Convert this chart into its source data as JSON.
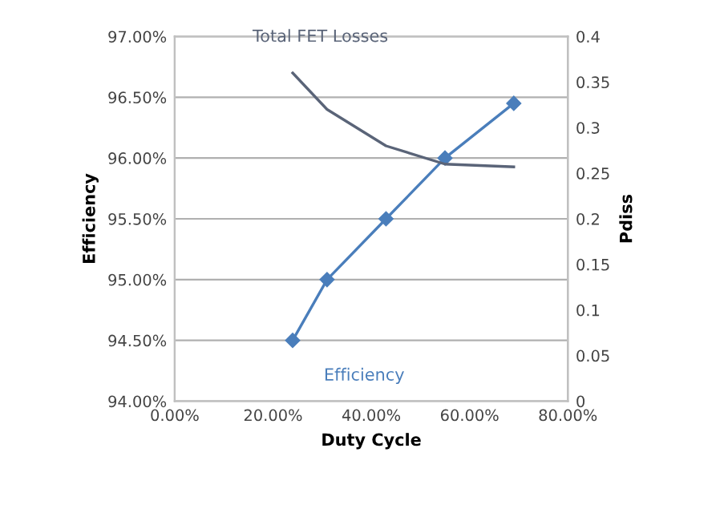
{
  "chart_data": {
    "type": "line",
    "xlabel": "Duty Cycle",
    "ylabel": "Efficiency",
    "y2label": "Pdiss",
    "xlim": [
      0,
      80
    ],
    "xticks": [
      {
        "value": 0,
        "label": "0.00%"
      },
      {
        "value": 20,
        "label": "20.00%"
      },
      {
        "value": 40,
        "label": "40.00%"
      },
      {
        "value": 60,
        "label": "60.00%"
      },
      {
        "value": 80,
        "label": "80.00%"
      }
    ],
    "ylim": [
      94,
      97
    ],
    "yticks": [
      {
        "value": 94,
        "label": "94.00%"
      },
      {
        "value": 94.5,
        "label": "94.50%"
      },
      {
        "value": 95,
        "label": "95.00%"
      },
      {
        "value": 95.5,
        "label": "95.50%"
      },
      {
        "value": 96,
        "label": "96.00%"
      },
      {
        "value": 96.5,
        "label": "96.50%"
      },
      {
        "value": 97,
        "label": "97.00%"
      }
    ],
    "y2lim": [
      0,
      0.4
    ],
    "y2ticks": [
      0,
      0.05,
      0.1,
      0.15,
      0.2,
      0.25,
      0.3,
      0.35,
      0.4
    ],
    "grid": "y",
    "legend": false,
    "series": [
      {
        "name": "Efficiency",
        "color": "#4a7ebb",
        "marker": "diamond",
        "x": [
          24,
          31,
          43,
          55,
          69
        ],
        "values": [
          94.5,
          95.0,
          95.5,
          96.0,
          96.45
        ]
      },
      {
        "name": "Total FET Losses",
        "color": "#5a6478",
        "marker": "none",
        "axis": "y2",
        "x": [
          24,
          31,
          43,
          55,
          69
        ],
        "values": [
          0.36,
          0.32,
          0.28,
          0.26,
          0.257
        ]
      }
    ]
  }
}
